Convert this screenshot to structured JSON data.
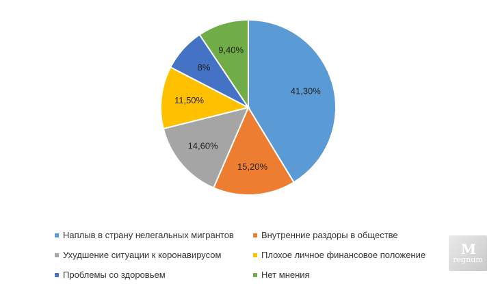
{
  "chart_data": {
    "type": "pie",
    "title": "",
    "slices": [
      {
        "label": "Наплыв в страну нелегальных мигрантов",
        "value": 41.3,
        "display": "41,30%",
        "color": "#5B9BD5"
      },
      {
        "label": "Внутренние раздоры в обществе",
        "value": 15.2,
        "display": "15,20%",
        "color": "#ED7D31"
      },
      {
        "label": "Ухудшение ситуации к коронавирусом",
        "value": 14.6,
        "display": "14,60%",
        "color": "#A5A5A5"
      },
      {
        "label": "Плохое личное финансовое положение",
        "value": 11.5,
        "display": "11,50%",
        "color": "#FFC000"
      },
      {
        "label": "Проблемы со здоровьем",
        "value": 8,
        "display": "8%",
        "color": "#4472C4"
      },
      {
        "label": "Нет мнения",
        "value": 9.4,
        "display": "9,40%",
        "color": "#70AD47"
      }
    ],
    "start_angle_deg": 0,
    "direction": "clockwise",
    "legend_position": "bottom"
  },
  "watermark": {
    "mark": "M",
    "text": "regnum"
  }
}
